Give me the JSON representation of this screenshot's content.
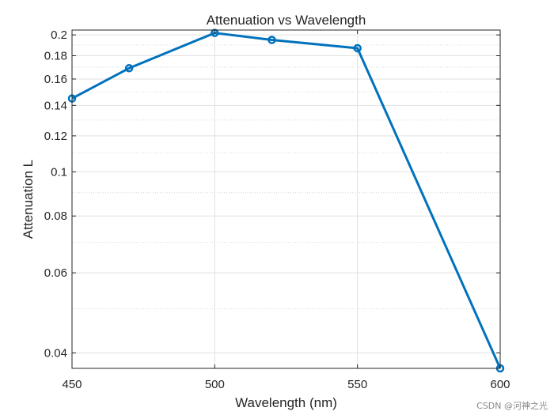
{
  "chart_data": {
    "type": "line",
    "title": "Attenuation vs Wavelength",
    "xlabel": "Wavelength (nm)",
    "ylabel": "Attenuation L",
    "x": [
      450,
      470,
      500,
      520,
      550,
      600
    ],
    "series": [
      {
        "values": [
          0.145,
          0.169,
          0.202,
          0.195,
          0.187,
          0.037
        ]
      }
    ],
    "xlim": [
      450,
      600
    ],
    "ylim": [
      0.037,
      0.205
    ],
    "yscale": "log",
    "xticks": [
      450,
      500,
      550,
      600
    ],
    "xtick_labels": [
      "450",
      "500",
      "550",
      "600"
    ],
    "yticks": [
      0.04,
      0.06,
      0.08,
      0.1,
      0.12,
      0.14,
      0.16,
      0.18,
      0.2
    ],
    "ytick_labels": [
      "0.04",
      "0.06",
      "0.08",
      "0.1",
      "0.12",
      "0.14",
      "0.16",
      "0.18",
      "0.2"
    ],
    "grid": true,
    "minor_grid": true,
    "line_color": "#0072BD",
    "marker": "circle"
  },
  "watermark": "CSDN @河神之光"
}
